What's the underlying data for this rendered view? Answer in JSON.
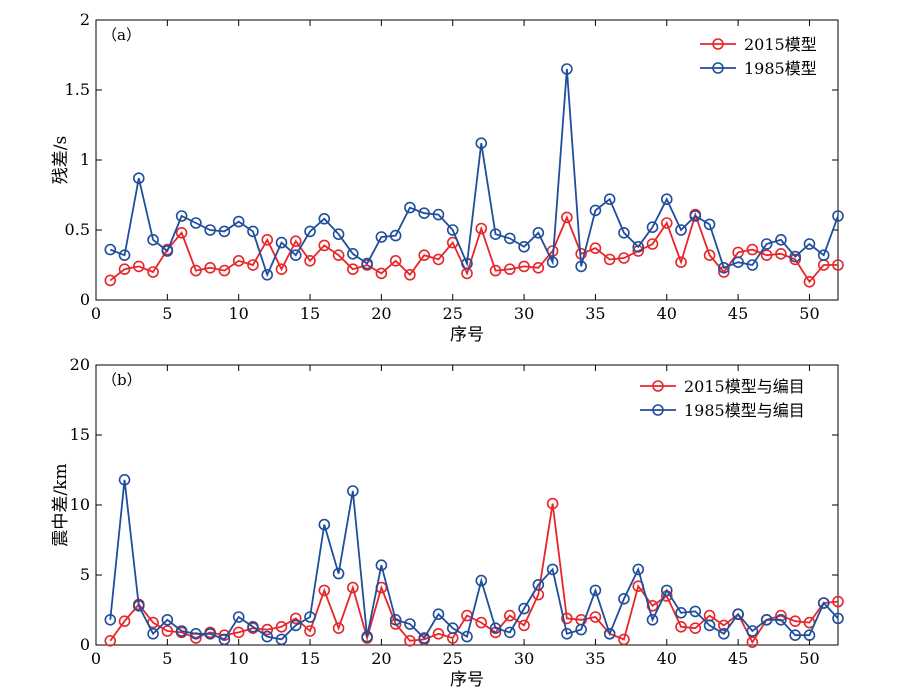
{
  "chart_data": [
    {
      "type": "line",
      "panel_label": "（a）",
      "xlabel": "序号",
      "ylabel": "残差/s",
      "xlim": [
        0,
        52
      ],
      "ylim": [
        0,
        2
      ],
      "xticks": [
        0,
        5,
        10,
        15,
        20,
        25,
        30,
        35,
        40,
        45,
        50
      ],
      "yticks": [
        0,
        0.5,
        1,
        1.5,
        2
      ],
      "ytick_labels": [
        "0",
        "0.5",
        "1",
        "1.5",
        "2"
      ],
      "grid": false,
      "legend_position": "top-right",
      "x": [
        1,
        2,
        3,
        4,
        5,
        6,
        7,
        8,
        9,
        10,
        11,
        12,
        13,
        14,
        15,
        16,
        17,
        18,
        19,
        20,
        21,
        22,
        23,
        24,
        25,
        26,
        27,
        28,
        29,
        30,
        31,
        32,
        33,
        34,
        35,
        36,
        37,
        38,
        39,
        40,
        41,
        42,
        43,
        44,
        45,
        46,
        47,
        48,
        49,
        50,
        51,
        52
      ],
      "series": [
        {
          "name": "2015模型",
          "color": "#e8262a",
          "values": [
            0.14,
            0.22,
            0.24,
            0.2,
            0.36,
            0.48,
            0.21,
            0.23,
            0.21,
            0.28,
            0.25,
            0.43,
            0.22,
            0.42,
            0.28,
            0.39,
            0.32,
            0.22,
            0.25,
            0.19,
            0.28,
            0.18,
            0.32,
            0.29,
            0.41,
            0.19,
            0.51,
            0.21,
            0.22,
            0.24,
            0.23,
            0.35,
            0.59,
            0.33,
            0.37,
            0.29,
            0.3,
            0.35,
            0.4,
            0.55,
            0.27,
            0.61,
            0.32,
            0.2,
            0.34,
            0.36,
            0.32,
            0.33,
            0.29,
            0.13,
            0.25,
            0.25
          ]
        },
        {
          "name": "1985模型",
          "color": "#1f4e9c",
          "values": [
            0.36,
            0.32,
            0.87,
            0.43,
            0.35,
            0.6,
            0.55,
            0.5,
            0.49,
            0.56,
            0.49,
            0.18,
            0.41,
            0.32,
            0.49,
            0.58,
            0.47,
            0.33,
            0.26,
            0.45,
            0.46,
            0.66,
            0.62,
            0.61,
            0.5,
            0.26,
            1.12,
            0.47,
            0.44,
            0.38,
            0.48,
            0.27,
            1.65,
            0.24,
            0.64,
            0.72,
            0.48,
            0.38,
            0.52,
            0.72,
            0.5,
            0.6,
            0.54,
            0.23,
            0.27,
            0.25,
            0.4,
            0.43,
            0.31,
            0.4,
            0.32,
            0.6
          ]
        }
      ]
    },
    {
      "type": "line",
      "panel_label": "（b）",
      "xlabel": "序号",
      "ylabel": "震中差/km",
      "xlim": [
        0,
        52
      ],
      "ylim": [
        0,
        20
      ],
      "xticks": [
        0,
        5,
        10,
        15,
        20,
        25,
        30,
        35,
        40,
        45,
        50
      ],
      "yticks": [
        0,
        5,
        10,
        15,
        20
      ],
      "ytick_labels": [
        "0",
        "5",
        "10",
        "15",
        "20"
      ],
      "grid": false,
      "legend_position": "top-right",
      "x": [
        1,
        2,
        3,
        4,
        5,
        6,
        7,
        8,
        9,
        10,
        11,
        12,
        13,
        14,
        15,
        16,
        17,
        18,
        19,
        20,
        21,
        22,
        23,
        24,
        25,
        26,
        27,
        28,
        29,
        30,
        31,
        32,
        33,
        34,
        35,
        36,
        37,
        38,
        39,
        40,
        41,
        42,
        43,
        44,
        45,
        46,
        47,
        48,
        49,
        50,
        51,
        52
      ],
      "series": [
        {
          "name": "2015模型与编目",
          "color": "#e8262a",
          "values": [
            0.3,
            1.7,
            2.9,
            1.6,
            1.0,
            0.9,
            0.5,
            0.9,
            0.7,
            0.9,
            1.2,
            1.1,
            1.3,
            1.9,
            1.0,
            3.9,
            1.2,
            4.1,
            0.5,
            4.1,
            1.5,
            0.3,
            0.4,
            0.8,
            0.5,
            2.1,
            1.6,
            0.9,
            2.1,
            1.4,
            3.6,
            10.1,
            1.9,
            1.8,
            2.0,
            0.8,
            0.4,
            4.2,
            2.8,
            3.5,
            1.3,
            1.2,
            2.1,
            1.4,
            2.2,
            0.2,
            1.8,
            2.1,
            1.7,
            1.6,
            3.0,
            3.1
          ]
        },
        {
          "name": "1985模型与编目",
          "color": "#1f4e9c",
          "values": [
            1.8,
            11.8,
            2.8,
            0.8,
            1.8,
            1.0,
            0.8,
            0.8,
            0.4,
            2.0,
            1.3,
            0.6,
            0.4,
            1.4,
            2.0,
            8.6,
            5.1,
            11.0,
            0.6,
            5.7,
            1.8,
            1.5,
            0.5,
            2.2,
            1.2,
            0.6,
            4.6,
            1.2,
            0.9,
            2.6,
            4.3,
            5.4,
            0.8,
            1.1,
            3.9,
            0.8,
            3.3,
            5.4,
            1.8,
            3.9,
            2.3,
            2.4,
            1.4,
            0.8,
            2.2,
            1.0,
            1.8,
            1.8,
            0.7,
            0.7,
            3.0,
            1.9
          ]
        }
      ]
    }
  ]
}
